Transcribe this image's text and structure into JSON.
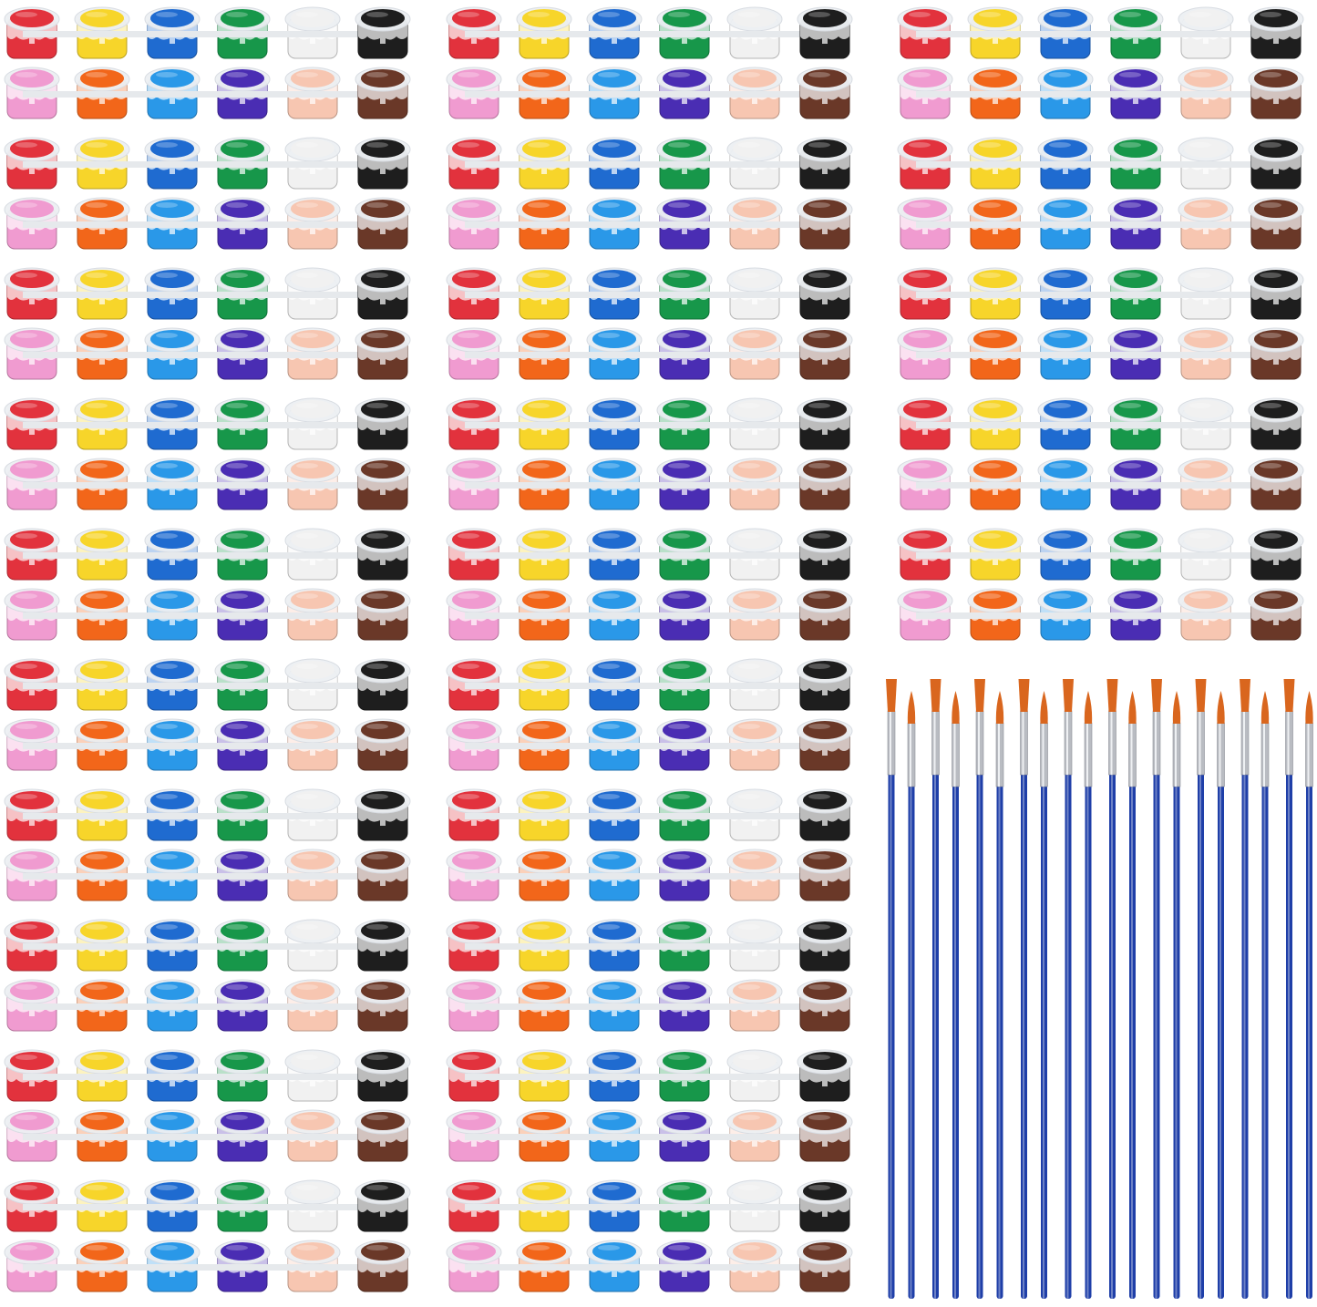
{
  "product": {
    "top_row_colors": [
      "#e2323d",
      "#f7d52a",
      "#1f6bd0",
      "#17974a",
      "#f1f1f1",
      "#1e1e1e"
    ],
    "bottom_row_colors": [
      "#f09bd0",
      "#f2661a",
      "#2a98e8",
      "#4a2db3",
      "#f7c6b1",
      "#6a3828"
    ],
    "strip_pairs_per_column": [
      10,
      10,
      5
    ],
    "brush_pairs": 10,
    "brush_handle_color": "#1f3fa8",
    "brush_bristle_color": "#d9661e"
  }
}
